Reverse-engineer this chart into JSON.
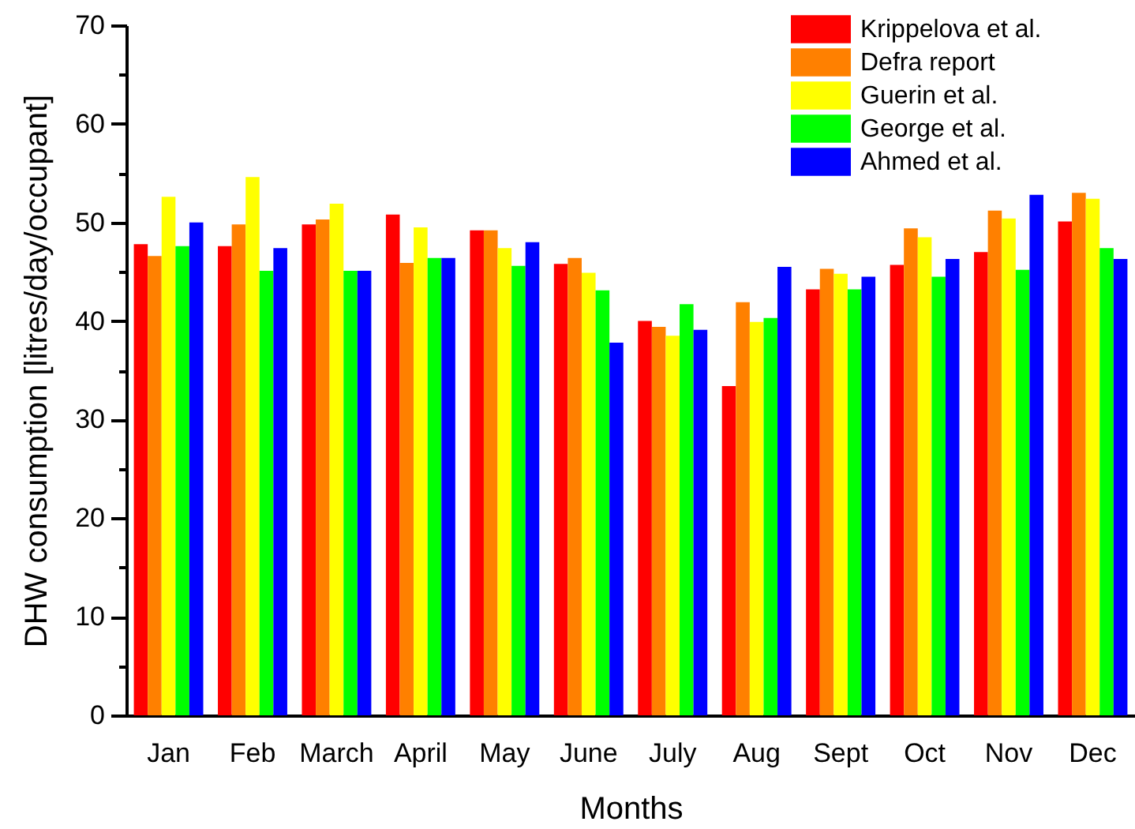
{
  "chart_data": {
    "type": "bar",
    "categories": [
      "Jan",
      "Feb",
      "March",
      "April",
      "May",
      "June",
      "July",
      "Aug",
      "Sept",
      "Oct",
      "Nov",
      "Dec"
    ],
    "series": [
      {
        "name": "Krippelova et al.",
        "color": "#ff0000",
        "values": [
          47.8,
          47.6,
          49.8,
          50.8,
          49.2,
          45.8,
          40.0,
          33.4,
          43.2,
          45.7,
          47.0,
          50.1
        ]
      },
      {
        "name": "Defra report",
        "color": "#ff8000",
        "values": [
          46.6,
          49.8,
          50.3,
          45.9,
          49.2,
          46.4,
          39.4,
          41.9,
          45.3,
          49.4,
          51.2,
          53.0
        ]
      },
      {
        "name": "Guerin et al.",
        "color": "#ffff00",
        "values": [
          52.6,
          54.6,
          51.9,
          49.5,
          47.4,
          44.9,
          38.5,
          39.9,
          44.8,
          48.5,
          50.4,
          52.4
        ]
      },
      {
        "name": "George et al.",
        "color": "#00ff00",
        "values": [
          47.6,
          45.1,
          45.1,
          46.4,
          45.6,
          43.1,
          41.7,
          40.3,
          43.2,
          44.5,
          45.2,
          47.4
        ]
      },
      {
        "name": "Ahmed et al.",
        "color": "#0000ff",
        "values": [
          50.0,
          47.4,
          45.1,
          46.4,
          48.0,
          37.8,
          39.1,
          45.5,
          44.5,
          46.3,
          52.8,
          46.3
        ]
      }
    ],
    "xlabel": "Months",
    "ylabel": "DHW consumption [litres/day/occupant]",
    "ylim": [
      0,
      70
    ],
    "yticks": [
      0,
      {
        "value": 5,
        "label": null
      },
      10,
      {
        "value": 15,
        "label": null
      },
      20,
      {
        "value": 25,
        "label": null
      },
      30,
      {
        "value": 35,
        "label": null
      },
      40,
      {
        "value": 45,
        "label": null
      },
      50,
      {
        "value": 55,
        "label": null
      },
      60,
      {
        "value": 65,
        "label": null
      },
      70
    ],
    "legend": "top right"
  }
}
